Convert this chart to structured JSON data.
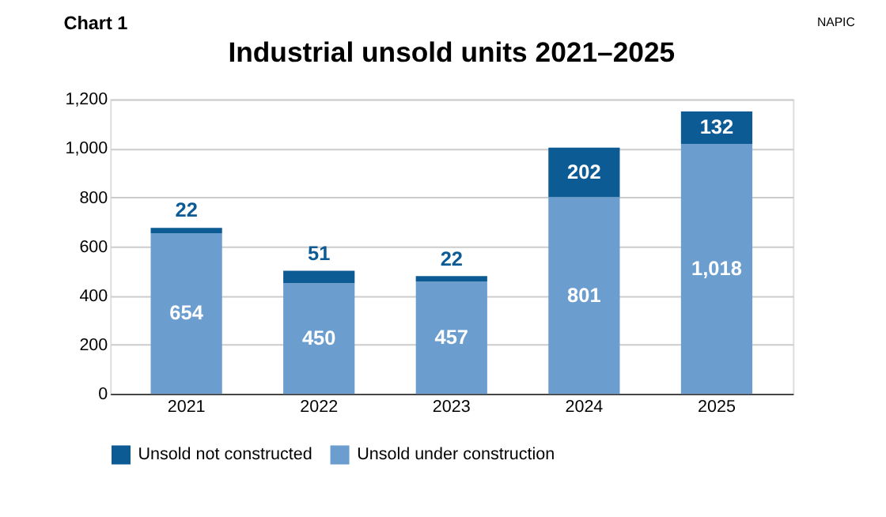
{
  "chart_data": {
    "type": "bar",
    "title": "Industrial unsold units 2021–2025",
    "categories": [
      "2021",
      "2022",
      "2023",
      "2024",
      "2025"
    ],
    "stacked": true,
    "series": [
      {
        "name": "Unsold under construction",
        "color": "#6b9dcf",
        "values": [
          654,
          450,
          457,
          801,
          1018
        ],
        "value_labels": [
          "654",
          "450",
          "457",
          "801",
          "1,018"
        ]
      },
      {
        "name": "Unsold not constructed",
        "color": "#0d5b95",
        "values": [
          22,
          51,
          22,
          202,
          132
        ],
        "value_labels": [
          "22",
          "51",
          "22",
          "202",
          "132"
        ]
      }
    ],
    "ylim": [
      0,
      1200
    ],
    "yticks": [
      0,
      200,
      400,
      600,
      800,
      {
        "value": 1000,
        "label": "1,000"
      },
      {
        "value": 1200,
        "label": "1,200"
      }
    ],
    "grid": "y",
    "legend": "bottom",
    "data_labels": true,
    "annotations": [
      "Chart 1",
      "NAPIC"
    ]
  }
}
